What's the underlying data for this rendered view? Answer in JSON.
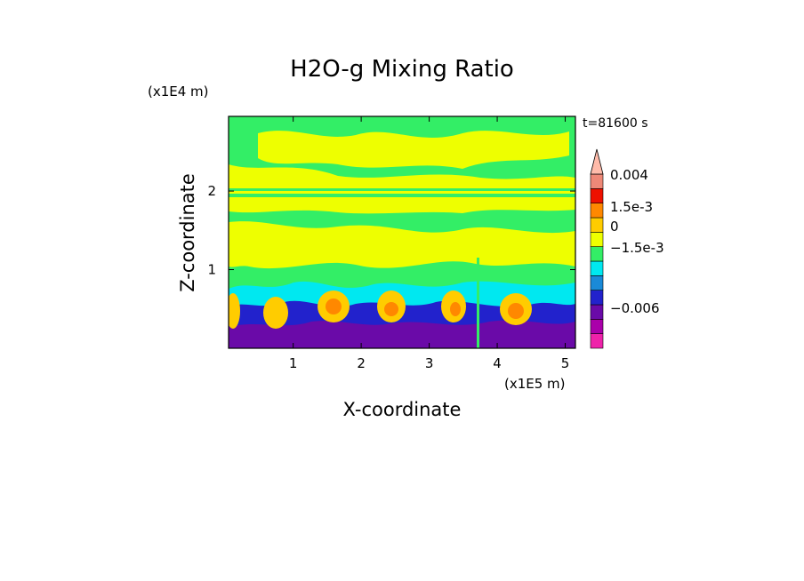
{
  "chart_data": {
    "type": "heatmap",
    "title": "H2O-g Mixing Ratio",
    "xlabel": "X-coordinate",
    "ylabel": "Z-coordinate",
    "x_scale_label": "(x1E5 m)",
    "y_scale_label": "(x1E4 m)",
    "time_label": "t=81600 s",
    "xlim": [
      0.05,
      5.15
    ],
    "ylim": [
      0,
      2.95
    ],
    "x_ticks": [
      1,
      2,
      3,
      4,
      5
    ],
    "x_tick_labels": [
      "1",
      "2",
      "3",
      "4",
      "5"
    ],
    "y_ticks": [
      1,
      2
    ],
    "y_tick_labels": [
      "1",
      "2"
    ],
    "colorbar": {
      "colors": [
        "#ee22aa",
        "#aa00aa",
        "#6a0aa8",
        "#2222cc",
        "#1a8ad8",
        "#00e8f0",
        "#33ee66",
        "#eeff00",
        "#ffcc00",
        "#ff8800",
        "#ee1100",
        "#ee8877",
        "#ffbbaa"
      ],
      "levels": [
        "0.004",
        "1.5e-3",
        "0",
        "−1.5e-3",
        "−0.006"
      ]
    }
  }
}
